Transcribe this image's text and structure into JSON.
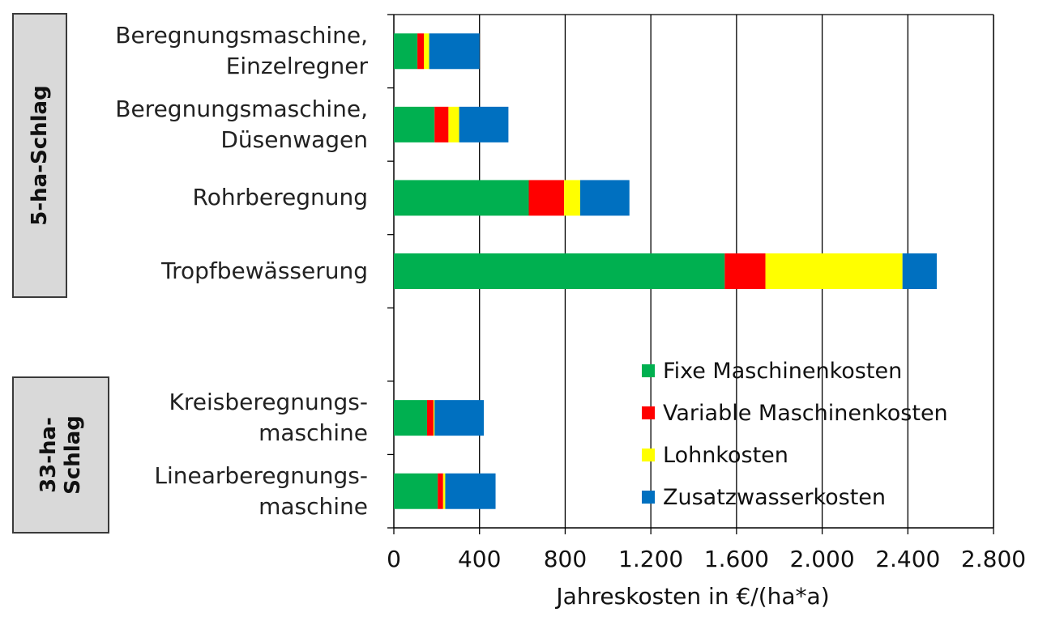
{
  "chart_data": {
    "type": "bar",
    "orientation": "horizontal",
    "stacked": true,
    "groups": [
      {
        "label": "5-ha-Schlag",
        "categories": [
          0,
          1,
          2,
          3
        ]
      },
      {
        "label": "33-ha-\nSchlag",
        "categories": [
          4,
          5
        ]
      }
    ],
    "categories": [
      "Beregnungsmaschine,\nEinzelregner",
      "Beregnungsmaschine,\nDüsenwagen",
      "Rohrberegnung",
      "Tropfbewässerung",
      "Kreisberegnungs-\nmaschine",
      "Linearberegnungs-\nmaschine"
    ],
    "series": [
      {
        "name": "Fixe Maschinenkosten",
        "color": "#00b050",
        "values": [
          110,
          190,
          630,
          1545,
          155,
          205
        ]
      },
      {
        "name": "Variable Maschinenkosten",
        "color": "#ff0000",
        "values": [
          30,
          65,
          165,
          190,
          30,
          25
        ]
      },
      {
        "name": "Lohnkosten",
        "color": "#ffff00",
        "values": [
          25,
          50,
          75,
          640,
          5,
          10
        ]
      },
      {
        "name": "Zusatzwasserkosten",
        "color": "#0070c0",
        "values": [
          235,
          230,
          230,
          160,
          230,
          235
        ]
      }
    ],
    "xlabel": "Jahreskosten in €/(ha*a)",
    "ylabel": "",
    "xlim": [
      0,
      2800
    ],
    "xticks": [
      0,
      400,
      800,
      1200,
      1600,
      2000,
      2400,
      2800
    ],
    "xtick_labels": [
      "0",
      "400",
      "800",
      "1.200",
      "1.600",
      "2.000",
      "2.400",
      "2.800"
    ],
    "grid": "vertical",
    "legend_position": "bottom-right inside"
  }
}
